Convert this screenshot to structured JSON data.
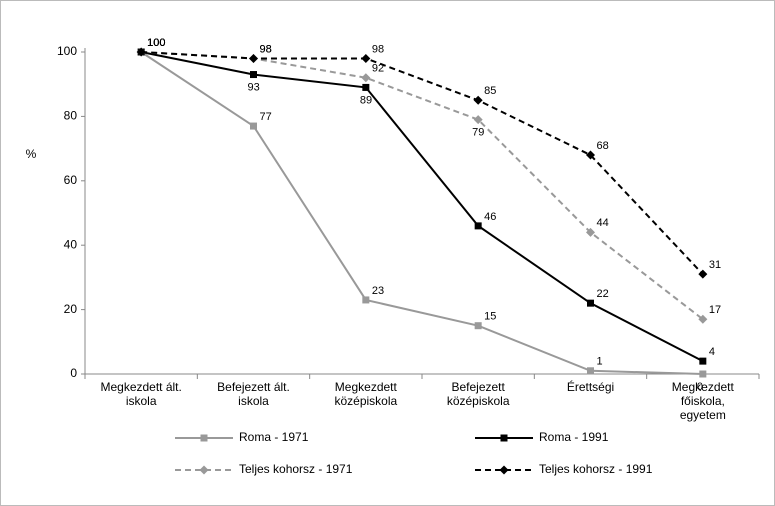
{
  "chart_data": {
    "type": "line",
    "ylabel": "%",
    "categories": [
      "Megkezdett ált.\niskola",
      "Befejezett ált.\niskola",
      "Megkezdett\nközépiskola",
      "Befejezett\nközépiskola",
      "Érettségi",
      "Megkezdett\nfőiskola,\negyetem"
    ],
    "series": [
      {
        "name": "Roma - 1971",
        "color": "#999999",
        "dash": false,
        "marker": "square",
        "values": [
          100,
          77,
          23,
          15,
          1,
          0
        ]
      },
      {
        "name": "Roma - 1991",
        "color": "#000000",
        "dash": false,
        "marker": "square",
        "values": [
          100,
          93,
          89,
          46,
          22,
          4
        ]
      },
      {
        "name": "Teljes kohorsz - 1971",
        "color": "#999999",
        "dash": true,
        "marker": "diamond",
        "values": [
          100,
          98,
          92,
          79,
          44,
          17
        ]
      },
      {
        "name": "Teljes kohorsz - 1991",
        "color": "#000000",
        "dash": true,
        "marker": "diamond",
        "values": [
          100,
          98,
          98,
          85,
          68,
          31
        ]
      }
    ],
    "ylim": [
      0,
      100
    ],
    "yticks": [
      0,
      20,
      40,
      60,
      80,
      100
    ],
    "grid": false
  }
}
